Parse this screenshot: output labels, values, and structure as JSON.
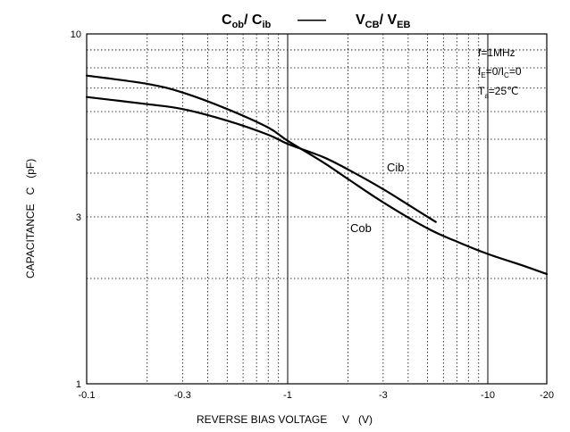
{
  "chart_data": {
    "type": "line",
    "title_parts": {
      "c1": "C",
      "c1_sub": "ob",
      "slash1": "/ ",
      "c2": "C",
      "c2_sub": "ib",
      "dash": "——",
      "v1": "V",
      "v1_sub": "CB",
      "slash2": "/ ",
      "v2": "V",
      "v2_sub": "EB"
    },
    "xlabel": "REVERSE BIAS VOLTAGE     V   (V)",
    "ylabel": "CAPACITANCE   C   (pF)",
    "x_scale": "log",
    "y_scale": "log",
    "xlim": [
      -0.1,
      -20
    ],
    "ylim": [
      1,
      10
    ],
    "x_ticks": [
      {
        "value": -0.1,
        "label": "-0.1"
      },
      {
        "value": -0.3,
        "label": "-0.3"
      },
      {
        "value": -1,
        "label": "-1"
      },
      {
        "value": -3,
        "label": "-3"
      },
      {
        "value": -10,
        "label": "-10"
      },
      {
        "value": -20,
        "label": "-20"
      }
    ],
    "y_ticks": [
      {
        "value": 1,
        "label": "1"
      },
      {
        "value": 3,
        "label": "3"
      },
      {
        "value": 10,
        "label": "10"
      }
    ],
    "grid": true,
    "conditions": {
      "line1": "f=1MHz",
      "line2": {
        "a": "I",
        "a_sub": "E",
        "b": "=0/I",
        "b_sub": "C",
        "c": "=0"
      },
      "line3": {
        "a": "T",
        "a_sub": "a",
        "b": "=25℃"
      }
    },
    "series": [
      {
        "name": "Cob",
        "x": [
          -0.1,
          -0.2,
          -0.3,
          -0.5,
          -0.8,
          -1.0,
          -1.5,
          -2.0,
          -3.0,
          -5.0,
          -7.0,
          -10.0,
          -15.0,
          -20.0
        ],
        "y": [
          7.6,
          7.2,
          6.8,
          6.1,
          5.4,
          4.95,
          4.3,
          3.85,
          3.3,
          2.78,
          2.55,
          2.35,
          2.18,
          2.06
        ]
      },
      {
        "name": "Cib",
        "x": [
          -0.1,
          -0.2,
          -0.3,
          -0.5,
          -0.8,
          -1.0,
          -1.5,
          -2.0,
          -3.0,
          -4.0,
          -5.5
        ],
        "y": [
          6.6,
          6.3,
          6.1,
          5.65,
          5.15,
          4.85,
          4.45,
          4.1,
          3.6,
          3.25,
          2.9
        ]
      }
    ]
  }
}
